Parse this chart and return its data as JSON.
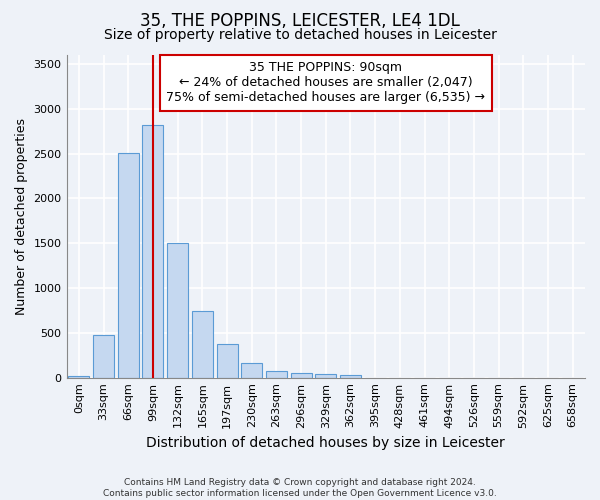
{
  "title": "35, THE POPPINS, LEICESTER, LE4 1DL",
  "subtitle": "Size of property relative to detached houses in Leicester",
  "xlabel": "Distribution of detached houses by size in Leicester",
  "ylabel": "Number of detached properties",
  "footnote1": "Contains HM Land Registry data © Crown copyright and database right 2024.",
  "footnote2": "Contains public sector information licensed under the Open Government Licence v3.0.",
  "bar_labels": [
    "0sqm",
    "33sqm",
    "66sqm",
    "99sqm",
    "132sqm",
    "165sqm",
    "197sqm",
    "230sqm",
    "263sqm",
    "296sqm",
    "329sqm",
    "362sqm",
    "395sqm",
    "428sqm",
    "461sqm",
    "494sqm",
    "526sqm",
    "559sqm",
    "592sqm",
    "625sqm",
    "658sqm"
  ],
  "bar_values": [
    20,
    480,
    2510,
    2820,
    1500,
    740,
    380,
    160,
    75,
    55,
    40,
    30,
    0,
    0,
    0,
    0,
    0,
    0,
    0,
    0,
    0
  ],
  "bar_color": "#c5d8f0",
  "bar_edge_color": "#5b9bd5",
  "bar_width": 0.85,
  "ylim": [
    0,
    3600
  ],
  "yticks": [
    0,
    500,
    1000,
    1500,
    2000,
    2500,
    3000,
    3500
  ],
  "vline_x_index": 3,
  "vline_color": "#cc0000",
  "annotation_title": "35 THE POPPINS: 90sqm",
  "annotation_line1": "← 24% of detached houses are smaller (2,047)",
  "annotation_line2": "75% of semi-detached houses are larger (6,535) →",
  "annotation_box_color": "#ffffff",
  "annotation_border_color": "#cc0000",
  "background_color": "#eef2f8",
  "grid_color": "#ffffff",
  "title_fontsize": 12,
  "subtitle_fontsize": 10,
  "xlabel_fontsize": 10,
  "ylabel_fontsize": 9,
  "tick_fontsize": 8,
  "annotation_fontsize": 9,
  "footnote_fontsize": 6.5
}
